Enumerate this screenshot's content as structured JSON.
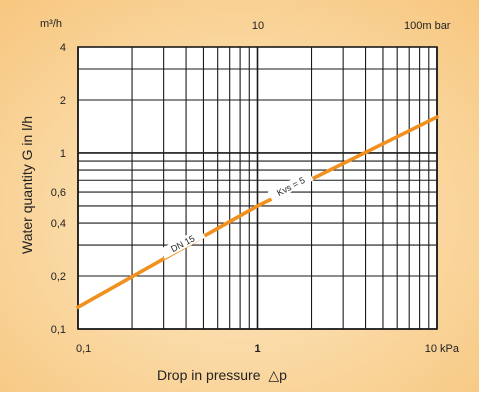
{
  "chart_data": {
    "type": "line",
    "top_axis": {
      "unit_label": "m³/h",
      "mid_label": "10",
      "end_label": "100m bar"
    },
    "x_axis": {
      "label": "Drop in pressure",
      "label_symbol": "△p",
      "scale": "log",
      "range": [
        0.1,
        10
      ],
      "tick_labels": [
        {
          "value": 0.1,
          "text": "0,1"
        },
        {
          "value": 1,
          "text": "1"
        },
        {
          "value": 10,
          "text": "10 kPa"
        }
      ]
    },
    "y_axis": {
      "label": "Water quantity G in l/h",
      "scale": "log",
      "range": [
        0.1,
        4
      ],
      "tick_labels": [
        {
          "value": 4,
          "text": "4"
        },
        {
          "value": 2,
          "text": "2"
        },
        {
          "value": 1,
          "text": "1"
        },
        {
          "value": 0.6,
          "text": "0,6"
        },
        {
          "value": 0.4,
          "text": "0,4"
        },
        {
          "value": 0.2,
          "text": "0,2"
        },
        {
          "value": 0.1,
          "text": "0,1"
        }
      ]
    },
    "grid": true,
    "series": [
      {
        "name": "DN 15",
        "annotation": "Kvs = 5",
        "color": "#f0901e",
        "x": [
          0.1,
          1,
          10
        ],
        "y": [
          0.133,
          0.5,
          1.6
        ]
      }
    ]
  },
  "theme": {
    "background_outer": "#f7c67e",
    "background_inner": "#fdebc8",
    "plot_background": "#ffffff",
    "grid_color": "#1a1a1a",
    "text_color": "#222222"
  }
}
